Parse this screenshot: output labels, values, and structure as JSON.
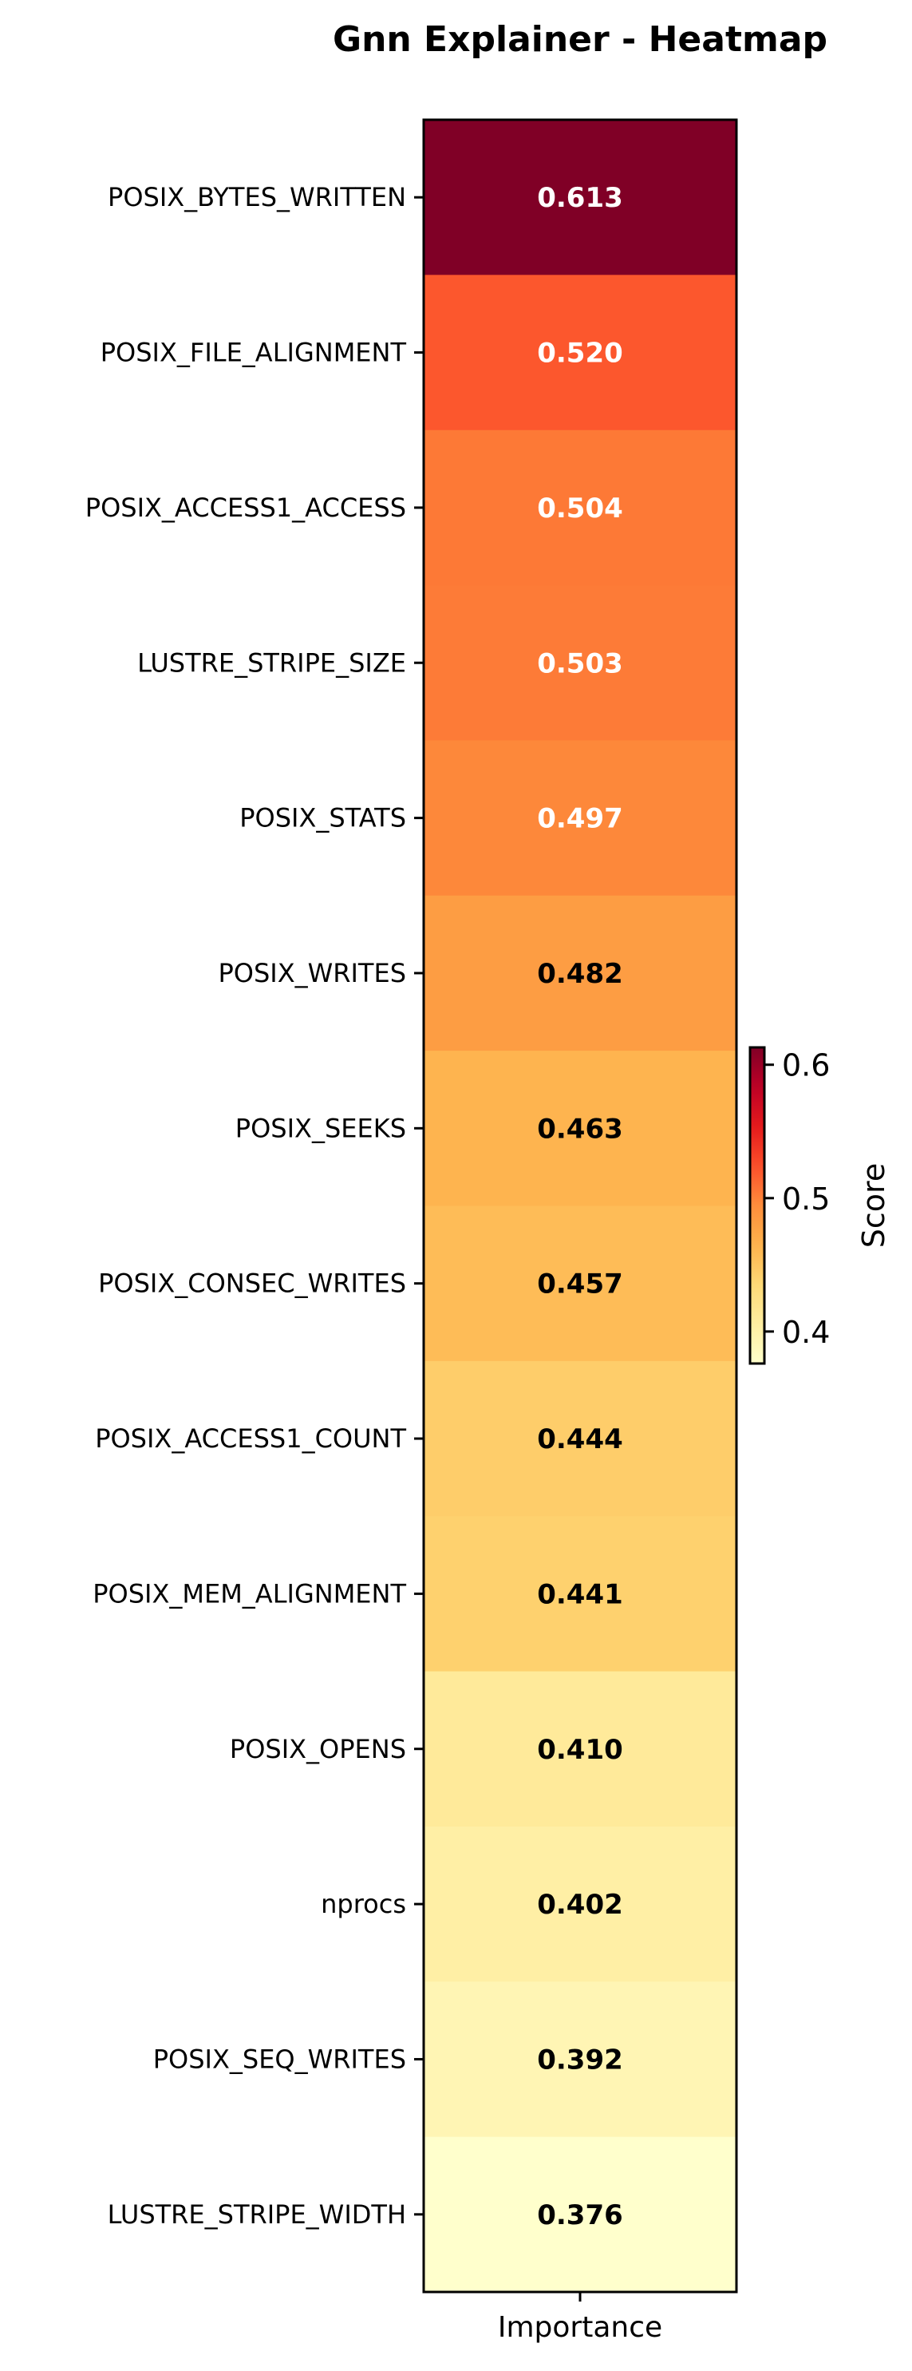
{
  "chart_data": {
    "type": "heatmap",
    "title": "Gnn Explainer - Heatmap",
    "xlabel": "",
    "ylabel": "",
    "columns": [
      "Importance"
    ],
    "rows": [
      "POSIX_BYTES_WRITTEN",
      "POSIX_FILE_ALIGNMENT",
      "POSIX_ACCESS1_ACCESS",
      "LUSTRE_STRIPE_SIZE",
      "POSIX_STATS",
      "POSIX_WRITES",
      "POSIX_SEEKS",
      "POSIX_CONSEC_WRITES",
      "POSIX_ACCESS1_COUNT",
      "POSIX_MEM_ALIGNMENT",
      "POSIX_OPENS",
      "nprocs",
      "POSIX_SEQ_WRITES",
      "LUSTRE_STRIPE_WIDTH"
    ],
    "values": [
      0.613,
      0.52,
      0.504,
      0.503,
      0.497,
      0.482,
      0.463,
      0.457,
      0.444,
      0.441,
      0.41,
      0.402,
      0.392,
      0.376
    ],
    "value_labels": [
      "0.613",
      "0.520",
      "0.504",
      "0.503",
      "0.497",
      "0.482",
      "0.463",
      "0.457",
      "0.444",
      "0.441",
      "0.410",
      "0.402",
      "0.392",
      "0.376"
    ],
    "colormap": "YlOrRd",
    "colorbar": {
      "label": "Score",
      "range": [
        0.376,
        0.613
      ],
      "ticks": [
        0.4,
        0.5,
        0.6
      ],
      "tick_labels": [
        "0.4",
        "0.5",
        "0.6"
      ]
    },
    "grid": false,
    "colors": {
      "text_light": "#ffffff",
      "text_dark": "#000000",
      "axis": "#000000"
    }
  }
}
